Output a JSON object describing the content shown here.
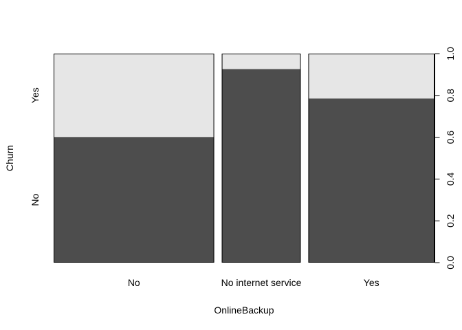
{
  "chart_data": {
    "type": "spineplot",
    "xlabel": "OnlineBackup",
    "ylabel": "Churn",
    "categories": [
      "No",
      "No internet service",
      "Yes"
    ],
    "category_widths": [
      0.439,
      0.216,
      0.345
    ],
    "series": [
      {
        "name": "No",
        "values": [
          0.601,
          0.926,
          0.785
        ]
      },
      {
        "name": "Yes",
        "values": [
          0.399,
          0.074,
          0.215
        ]
      }
    ],
    "right_axis": {
      "ylim": [
        0,
        1
      ],
      "ticks": [
        "0.0",
        "0.2",
        "0.4",
        "0.6",
        "0.8",
        "1.0"
      ]
    },
    "colors": {
      "No": "#4d4d4d",
      "Yes": "#e6e6e6",
      "border": "#000000"
    }
  }
}
